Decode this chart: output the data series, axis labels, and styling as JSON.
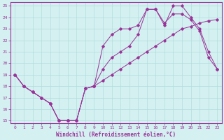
{
  "xlabel": "Windchill (Refroidissement éolien,°C)",
  "xlim": [
    -0.5,
    23.5
  ],
  "ylim": [
    14.8,
    25.3
  ],
  "xticks": [
    0,
    1,
    2,
    3,
    4,
    5,
    6,
    7,
    8,
    9,
    10,
    11,
    12,
    13,
    14,
    15,
    16,
    17,
    18,
    19,
    20,
    21,
    22,
    23
  ],
  "yticks": [
    15,
    16,
    17,
    18,
    19,
    20,
    21,
    22,
    23,
    24,
    25
  ],
  "line_color": "#993399",
  "bg_color": "#d4f0f0",
  "grid_color": "#b0dede",
  "line1_x": [
    0,
    1,
    2,
    3,
    4,
    5,
    6,
    7,
    8,
    9,
    10,
    11,
    12,
    13,
    14,
    15,
    16,
    17,
    18,
    19,
    20,
    21,
    22,
    23
  ],
  "line1_y": [
    19.0,
    18.0,
    17.5,
    17.0,
    16.5,
    15.0,
    15.0,
    15.0,
    17.8,
    18.0,
    18.5,
    19.0,
    19.5,
    20.0,
    20.5,
    21.0,
    21.5,
    22.0,
    22.5,
    23.0,
    23.2,
    23.5,
    23.7,
    23.8
  ],
  "line2_x": [
    0,
    1,
    2,
    3,
    4,
    5,
    6,
    7,
    8,
    9,
    10,
    11,
    12,
    13,
    14,
    15,
    16,
    17,
    18,
    19,
    20,
    21,
    22,
    23
  ],
  "line2_y": [
    19.0,
    18.0,
    17.5,
    17.0,
    16.5,
    15.0,
    15.0,
    15.0,
    17.8,
    18.0,
    19.5,
    20.5,
    21.0,
    21.5,
    22.5,
    24.7,
    24.7,
    23.5,
    24.3,
    24.3,
    23.8,
    22.8,
    20.5,
    19.5
  ],
  "line3_x": [
    0,
    1,
    2,
    3,
    4,
    5,
    6,
    7,
    8,
    9,
    10,
    11,
    12,
    13,
    14,
    15,
    16,
    17,
    18,
    19,
    20,
    21,
    22,
    23
  ],
  "line3_y": [
    19.0,
    18.0,
    17.5,
    17.0,
    16.5,
    15.0,
    15.0,
    15.0,
    17.8,
    18.0,
    21.5,
    22.5,
    23.0,
    23.0,
    23.3,
    24.7,
    24.7,
    23.3,
    25.0,
    25.0,
    24.0,
    23.0,
    21.0,
    19.5
  ]
}
